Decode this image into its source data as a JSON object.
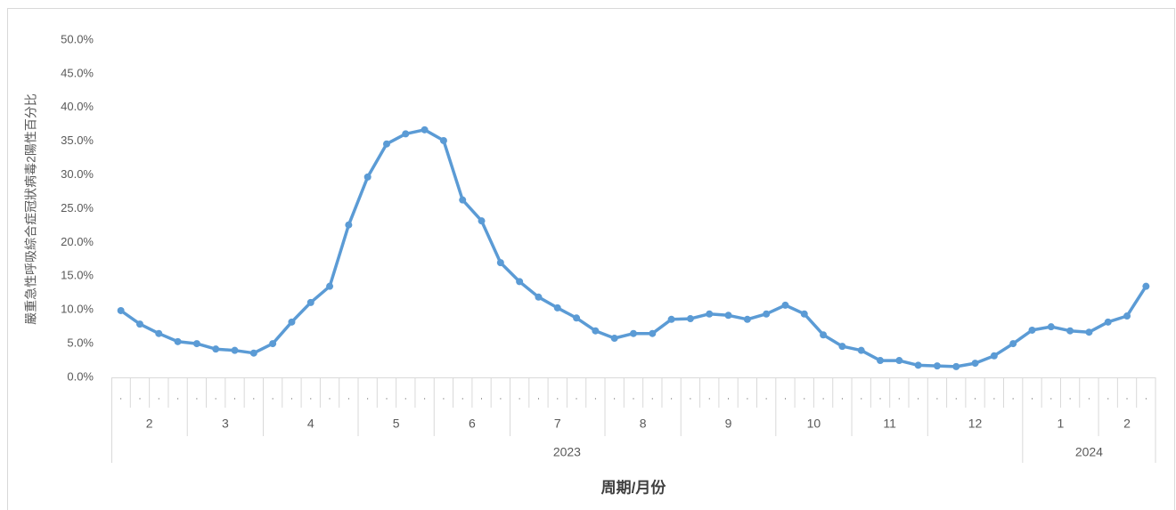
{
  "chart_data": {
    "type": "line",
    "y_label": "嚴重急性呼吸綜合症冠狀病毒2陽性百分比",
    "x_label": "周期/月份",
    "categories": [
      ".",
      ".",
      ".",
      ".",
      ".",
      ".",
      ".",
      ".",
      ".",
      ".",
      ".",
      ".",
      ".",
      ".",
      ".",
      ".",
      ".",
      ".",
      ".",
      ".",
      ".",
      ".",
      ".",
      ".",
      ".",
      ".",
      ".",
      ".",
      ".",
      ".",
      ".",
      ".",
      ".",
      ".",
      ".",
      ".",
      ".",
      ".",
      ".",
      ".",
      ".",
      ".",
      ".",
      ".",
      ".",
      ".",
      ".",
      ".",
      ".",
      ".",
      ".",
      ".",
      ".",
      ".",
      "."
    ],
    "month_groups": [
      {
        "label": "2",
        "span": 4
      },
      {
        "label": "3",
        "span": 4
      },
      {
        "label": "4",
        "span": 5
      },
      {
        "label": "5",
        "span": 4
      },
      {
        "label": "6",
        "span": 4
      },
      {
        "label": "7",
        "span": 5
      },
      {
        "label": "8",
        "span": 4
      },
      {
        "label": "9",
        "span": 5
      },
      {
        "label": "10",
        "span": 4
      },
      {
        "label": "11",
        "span": 4
      },
      {
        "label": "12",
        "span": 5
      },
      {
        "label": "1",
        "span": 4
      },
      {
        "label": "2",
        "span": 3
      }
    ],
    "year_groups": [
      {
        "label": "2023",
        "span": 48
      },
      {
        "label": "2024",
        "span": 7
      }
    ],
    "series": [
      {
        "name": "陽性百分比",
        "color": "#5b9bd5",
        "values": [
          9.9,
          7.9,
          6.5,
          5.3,
          5.0,
          4.2,
          4.0,
          3.6,
          5.0,
          8.2,
          11.1,
          13.5,
          22.6,
          29.7,
          34.6,
          36.1,
          36.7,
          35.1,
          26.3,
          23.2,
          17.0,
          14.2,
          11.9,
          10.3,
          8.8,
          6.9,
          5.8,
          6.5,
          6.5,
          8.6,
          8.7,
          9.4,
          9.2,
          8.6,
          9.4,
          10.7,
          9.4,
          6.3,
          4.6,
          4.0,
          2.5,
          2.5,
          1.8,
          1.7,
          1.6,
          2.1,
          3.2,
          5.0,
          7.0,
          7.5,
          6.9,
          6.7,
          8.2,
          9.1,
          13.5
        ]
      }
    ],
    "ylim": [
      0,
      50
    ],
    "yticks": [
      {
        "value": 0,
        "label": "0.0%"
      },
      {
        "value": 5,
        "label": "5.0%"
      },
      {
        "value": 10,
        "label": "10.0%"
      },
      {
        "value": 15,
        "label": "15.0%"
      },
      {
        "value": 20,
        "label": "20.0%"
      },
      {
        "value": 25,
        "label": "25.0%"
      },
      {
        "value": 30,
        "label": "30.0%"
      },
      {
        "value": 35,
        "label": "35.0%"
      },
      {
        "value": 40,
        "label": "40.0%"
      },
      {
        "value": 45,
        "label": "45.0%"
      },
      {
        "value": 50,
        "label": "50.0%"
      }
    ],
    "grid": false
  }
}
